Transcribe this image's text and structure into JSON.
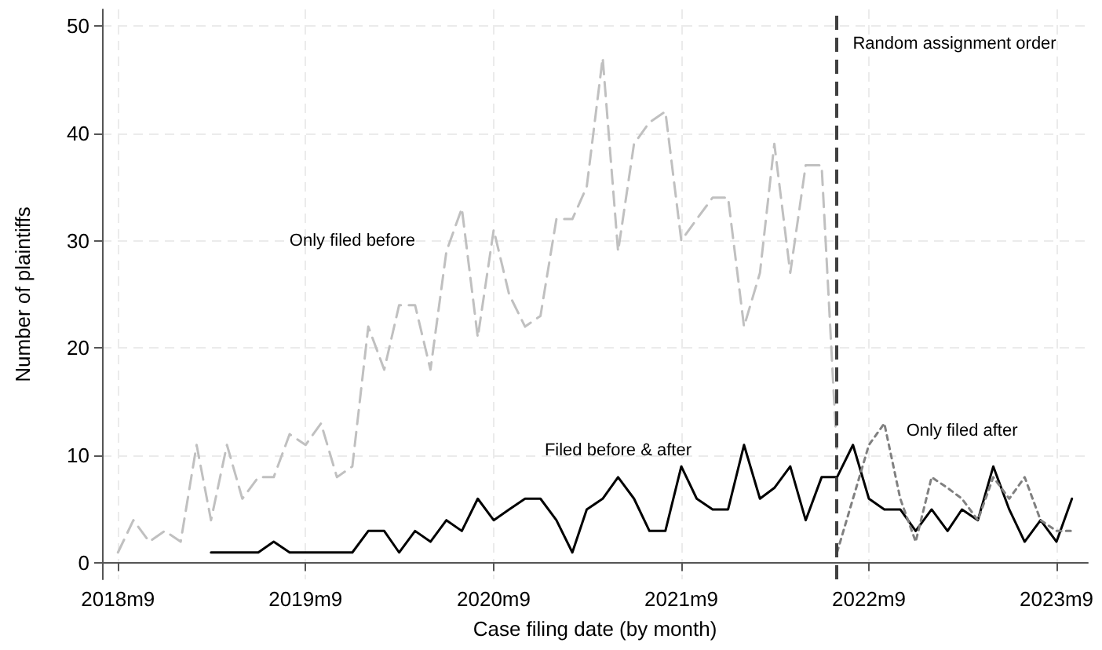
{
  "chart_data": {
    "type": "line",
    "xlabel": "Case filing date (by month)",
    "ylabel": "Number of plaintiffs",
    "x": [
      "2018-09",
      "2018-10",
      "2018-11",
      "2018-12",
      "2019-01",
      "2019-02",
      "2019-03",
      "2019-04",
      "2019-05",
      "2019-06",
      "2019-07",
      "2019-08",
      "2019-09",
      "2019-10",
      "2019-11",
      "2019-12",
      "2020-01",
      "2020-02",
      "2020-03",
      "2020-04",
      "2020-05",
      "2020-06",
      "2020-07",
      "2020-08",
      "2020-09",
      "2020-10",
      "2020-11",
      "2020-12",
      "2021-01",
      "2021-02",
      "2021-03",
      "2021-04",
      "2021-05",
      "2021-06",
      "2021-07",
      "2021-08",
      "2021-09",
      "2021-10",
      "2021-11",
      "2021-12",
      "2022-01",
      "2022-02",
      "2022-03",
      "2022-04",
      "2022-05",
      "2022-06",
      "2022-07",
      "2022-08",
      "2022-09",
      "2022-10",
      "2022-11",
      "2022-12",
      "2023-01",
      "2023-02",
      "2023-03",
      "2023-04",
      "2023-05",
      "2023-06",
      "2023-07",
      "2023-08",
      "2023-09",
      "2023-10"
    ],
    "series": [
      {
        "name": "Only filed before",
        "color": "#c0c0c0",
        "line_style": "dashed",
        "values": [
          1,
          4,
          2,
          3,
          2,
          11,
          4,
          11,
          6,
          8,
          8,
          12,
          11,
          13,
          8,
          9,
          22,
          18,
          24,
          24,
          18,
          29,
          33,
          21,
          31,
          25,
          22,
          23,
          32,
          32,
          35,
          47,
          29,
          39,
          41,
          42,
          30,
          32,
          34,
          34,
          22,
          27,
          39,
          27,
          37,
          37,
          10,
          null,
          null,
          null,
          null,
          null,
          null,
          null,
          null,
          null,
          null,
          null,
          null,
          null,
          null,
          null
        ]
      },
      {
        "name": "Filed before & after",
        "color": "#000000",
        "line_style": "solid",
        "values": [
          null,
          null,
          null,
          null,
          null,
          null,
          1,
          1,
          1,
          1,
          2,
          1,
          1,
          1,
          1,
          1,
          3,
          3,
          1,
          3,
          2,
          4,
          3,
          6,
          4,
          5,
          6,
          6,
          4,
          1,
          5,
          6,
          8,
          6,
          3,
          3,
          9,
          6,
          5,
          5,
          11,
          6,
          7,
          9,
          4,
          8,
          8,
          11,
          6,
          5,
          5,
          3,
          5,
          3,
          5,
          4,
          9,
          5,
          2,
          4,
          2,
          6
        ]
      },
      {
        "name": "Only filed after",
        "color": "#808080",
        "line_style": "dotted",
        "values": [
          null,
          null,
          null,
          null,
          null,
          null,
          null,
          null,
          null,
          null,
          null,
          null,
          null,
          null,
          null,
          null,
          null,
          null,
          null,
          null,
          null,
          null,
          null,
          null,
          null,
          null,
          null,
          null,
          null,
          null,
          null,
          null,
          null,
          null,
          null,
          null,
          null,
          null,
          null,
          null,
          null,
          null,
          null,
          null,
          null,
          null,
          1,
          6,
          11,
          13,
          6,
          2,
          8,
          7,
          6,
          4,
          8,
          6,
          8,
          4,
          3,
          3
        ]
      }
    ],
    "xlim": [
      "2018-08",
      "2023-11"
    ],
    "xticks": [
      {
        "value": "2018-09",
        "label": "2018m9"
      },
      {
        "value": "2019-09",
        "label": "2019m9"
      },
      {
        "value": "2020-09",
        "label": "2020m9"
      },
      {
        "value": "2021-09",
        "label": "2021m9"
      },
      {
        "value": "2022-09",
        "label": "2022m9"
      },
      {
        "value": "2023-09",
        "label": "2023m9"
      }
    ],
    "ylim": [
      -1.5,
      51.5
    ],
    "yticks": [
      0,
      10,
      20,
      30,
      40,
      50
    ],
    "grid": true,
    "marker": "none",
    "ref_lines": [
      {
        "axis": "x",
        "value": "2022-07",
        "label": "Random assignment order",
        "color": "#404040",
        "line_style": "dashed"
      }
    ]
  }
}
